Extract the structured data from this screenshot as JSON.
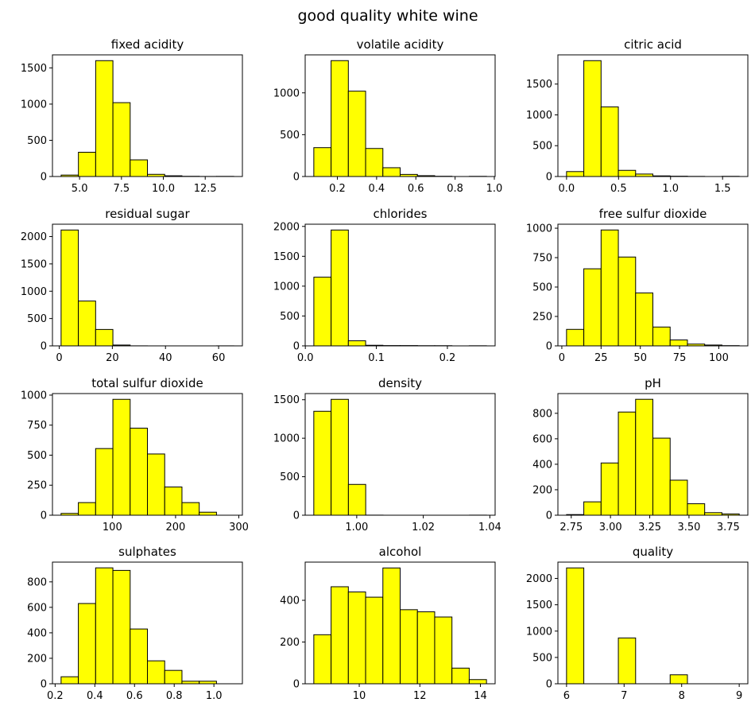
{
  "figure": {
    "title": "good quality white wine"
  },
  "style": {
    "bar_fill": "#ffff00",
    "bar_edge": "#000000",
    "axes_edge": "#000000"
  },
  "chart_data": [
    {
      "type": "bar",
      "title": "fixed acidity",
      "xlabel": "",
      "ylabel": "",
      "bin_edges": [
        3.9,
        4.93,
        5.96,
        6.99,
        8.02,
        9.05,
        10.08,
        11.11,
        12.14,
        13.17,
        14.2
      ],
      "values": [
        20,
        335,
        1600,
        1020,
        230,
        30,
        10,
        3,
        1,
        2
      ],
      "xlim": [
        3.38,
        14.72
      ],
      "ylim": [
        0,
        1680
      ],
      "xticks": [
        5.0,
        7.5,
        10.0,
        12.5
      ],
      "xtick_labels": [
        "5.0",
        "7.5",
        "10.0",
        "12.5"
      ],
      "yticks": [
        0,
        500,
        1000,
        1500
      ],
      "ytick_labels": [
        "0",
        "500",
        "1000",
        "1500"
      ]
    },
    {
      "type": "bar",
      "title": "volatile acidity",
      "xlabel": "",
      "ylabel": "",
      "bin_edges": [
        0.08,
        0.168,
        0.256,
        0.344,
        0.432,
        0.52,
        0.608,
        0.696,
        0.784,
        0.872,
        0.96
      ],
      "values": [
        345,
        1385,
        1020,
        335,
        105,
        25,
        10,
        3,
        0,
        2
      ],
      "xlim": [
        0.036,
        1.004
      ],
      "ylim": [
        0,
        1454
      ],
      "xticks": [
        0.2,
        0.4,
        0.6,
        0.8,
        1.0
      ],
      "xtick_labels": [
        "0.2",
        "0.4",
        "0.6",
        "0.8",
        "1.0"
      ],
      "yticks": [
        0,
        500,
        1000
      ],
      "ytick_labels": [
        "0",
        "500",
        "1000"
      ]
    },
    {
      "type": "bar",
      "title": "citric acid",
      "xlabel": "",
      "ylabel": "",
      "bin_edges": [
        0.0,
        0.166,
        0.332,
        0.498,
        0.664,
        0.83,
        0.996,
        1.162,
        1.328,
        1.494,
        1.66
      ],
      "values": [
        80,
        1880,
        1130,
        100,
        40,
        10,
        5,
        2,
        0,
        3
      ],
      "xlim": [
        -0.083,
        1.743
      ],
      "ylim": [
        0,
        1974
      ],
      "xticks": [
        0.0,
        0.5,
        1.0,
        1.5
      ],
      "xtick_labels": [
        "0.0",
        "0.5",
        "1.0",
        "1.5"
      ],
      "yticks": [
        0,
        500,
        1000,
        1500
      ],
      "ytick_labels": [
        "0",
        "500",
        "1000",
        "1500"
      ]
    },
    {
      "type": "bar",
      "title": "residual sugar",
      "xlabel": "",
      "ylabel": "",
      "bin_edges": [
        0.7,
        7.2,
        13.7,
        20.2,
        26.7,
        33.2,
        39.7,
        46.2,
        52.7,
        59.2,
        65.7
      ],
      "values": [
        2120,
        820,
        300,
        15,
        1,
        0,
        0,
        0,
        0,
        1
      ],
      "xlim": [
        -2.55,
        68.95
      ],
      "ylim": [
        0,
        2226
      ],
      "xticks": [
        0,
        20,
        40,
        60
      ],
      "xtick_labels": [
        "0",
        "20",
        "40",
        "60"
      ],
      "yticks": [
        0,
        500,
        1000,
        1500,
        2000
      ],
      "ytick_labels": [
        "0",
        "500",
        "1000",
        "1500",
        "2000"
      ]
    },
    {
      "type": "bar",
      "title": "chlorides",
      "xlabel": "",
      "ylabel": "",
      "bin_edges": [
        0.012,
        0.0363,
        0.0606,
        0.0849,
        0.1092,
        0.1335,
        0.1578,
        0.1821,
        0.2064,
        0.2307,
        0.255
      ],
      "values": [
        1150,
        1940,
        85,
        10,
        5,
        5,
        3,
        3,
        0,
        2
      ],
      "xlim": [
        -0.0002,
        0.2672
      ],
      "ylim": [
        0,
        2037
      ],
      "xticks": [
        0.0,
        0.1,
        0.2
      ],
      "xtick_labels": [
        "0.0",
        "0.1",
        "0.2"
      ],
      "yticks": [
        0,
        500,
        1000,
        1500,
        2000
      ],
      "ytick_labels": [
        "0",
        "500",
        "1000",
        "1500",
        "2000"
      ]
    },
    {
      "type": "bar",
      "title": "free sulfur dioxide",
      "xlabel": "",
      "ylabel": "",
      "bin_edges": [
        3,
        14,
        25,
        36,
        47,
        58,
        69,
        80,
        91,
        102,
        113
      ],
      "values": [
        140,
        655,
        985,
        755,
        450,
        160,
        50,
        15,
        7,
        2
      ],
      "xlim": [
        -2.5,
        118.5
      ],
      "ylim": [
        0,
        1034
      ],
      "xticks": [
        0,
        25,
        50,
        75,
        100
      ],
      "xtick_labels": [
        "0",
        "25",
        "50",
        "75",
        "100"
      ],
      "yticks": [
        0,
        250,
        500,
        750,
        1000
      ],
      "ytick_labels": [
        "0",
        "250",
        "500",
        "750",
        "1000"
      ]
    },
    {
      "type": "bar",
      "title": "total sulfur dioxide",
      "xlabel": "",
      "ylabel": "",
      "bin_edges": [
        19,
        46.3,
        73.6,
        100.9,
        128.2,
        155.5,
        182.8,
        210.1,
        237.4,
        264.7,
        292
      ],
      "values": [
        15,
        105,
        555,
        965,
        725,
        510,
        235,
        105,
        25,
        0
      ],
      "xlim": [
        5.35,
        305.65
      ],
      "ylim": [
        0,
        1013
      ],
      "xticks": [
        100,
        200,
        300
      ],
      "xtick_labels": [
        "100",
        "200",
        "300"
      ],
      "yticks": [
        0,
        250,
        500,
        750,
        1000
      ],
      "ytick_labels": [
        "0",
        "250",
        "500",
        "750",
        "1000"
      ]
    },
    {
      "type": "bar",
      "title": "density",
      "xlabel": "",
      "ylabel": "",
      "bin_edges": [
        0.9871,
        0.9923,
        0.9975,
        1.0027,
        1.0079,
        1.0131,
        1.0183,
        1.0235,
        1.0287,
        1.0339,
        1.039
      ],
      "values": [
        1350,
        1505,
        400,
        1,
        0,
        0,
        0,
        0,
        0,
        1
      ],
      "xlim": [
        0.98451,
        1.04159
      ],
      "ylim": [
        0,
        1580
      ],
      "xticks": [
        1.0,
        1.02,
        1.04
      ],
      "xtick_labels": [
        "1.00",
        "1.02",
        "1.04"
      ],
      "yticks": [
        0,
        500,
        1000,
        1500
      ],
      "ytick_labels": [
        "0",
        "500",
        "1000",
        "1500"
      ]
    },
    {
      "type": "bar",
      "title": "pH",
      "xlabel": "",
      "ylabel": "",
      "bin_edges": [
        2.72,
        2.83,
        2.94,
        3.05,
        3.16,
        3.27,
        3.38,
        3.49,
        3.6,
        3.71,
        3.82
      ],
      "values": [
        5,
        105,
        410,
        810,
        910,
        605,
        275,
        90,
        20,
        10
      ],
      "xlim": [
        2.665,
        3.875
      ],
      "ylim": [
        0,
        955
      ],
      "xticks": [
        2.75,
        3.0,
        3.25,
        3.5,
        3.75
      ],
      "xtick_labels": [
        "2.75",
        "3.00",
        "3.25",
        "3.50",
        "3.75"
      ],
      "yticks": [
        0,
        200,
        400,
        600,
        800
      ],
      "ytick_labels": [
        "0",
        "200",
        "400",
        "600",
        "800"
      ]
    },
    {
      "type": "bar",
      "title": "sulphates",
      "xlabel": "",
      "ylabel": "",
      "bin_edges": [
        0.23,
        0.317,
        0.404,
        0.491,
        0.578,
        0.665,
        0.752,
        0.839,
        0.926,
        1.013,
        1.1
      ],
      "values": [
        55,
        630,
        910,
        890,
        430,
        180,
        105,
        20,
        20,
        0
      ],
      "xlim": [
        0.1865,
        1.1435
      ],
      "ylim": [
        0,
        955
      ],
      "xticks": [
        0.2,
        0.4,
        0.6,
        0.8,
        1.0
      ],
      "xtick_labels": [
        "0.2",
        "0.4",
        "0.6",
        "0.8",
        "1.0"
      ],
      "yticks": [
        0,
        200,
        400,
        600,
        800
      ],
      "ytick_labels": [
        "0",
        "200",
        "400",
        "600",
        "800"
      ]
    },
    {
      "type": "bar",
      "title": "alcohol",
      "xlabel": "",
      "ylabel": "",
      "bin_edges": [
        8.5,
        9.07,
        9.64,
        10.21,
        10.78,
        11.35,
        11.92,
        12.49,
        13.06,
        13.63,
        14.2
      ],
      "values": [
        235,
        465,
        440,
        415,
        555,
        355,
        345,
        320,
        75,
        20
      ],
      "xlim": [
        8.215,
        14.485
      ],
      "ylim": [
        0,
        583
      ],
      "xticks": [
        10,
        12,
        14
      ],
      "xtick_labels": [
        "10",
        "12",
        "14"
      ],
      "yticks": [
        0,
        200,
        400
      ],
      "ytick_labels": [
        "0",
        "200",
        "400"
      ]
    },
    {
      "type": "bar",
      "title": "quality",
      "xlabel": "",
      "ylabel": "",
      "bin_edges": [
        6.0,
        6.3,
        6.6,
        6.9,
        7.2,
        7.5,
        7.8,
        8.1,
        8.4,
        8.7,
        9.0
      ],
      "values": [
        2200,
        0,
        0,
        870,
        0,
        0,
        170,
        0,
        0,
        0
      ],
      "xlim": [
        5.85,
        9.15
      ],
      "ylim": [
        0,
        2310
      ],
      "xticks": [
        6,
        7,
        8,
        9
      ],
      "xtick_labels": [
        "6",
        "7",
        "8",
        "9"
      ],
      "yticks": [
        0,
        500,
        1000,
        1500,
        2000
      ],
      "ytick_labels": [
        "0",
        "500",
        "1000",
        "1500",
        "2000"
      ]
    }
  ]
}
